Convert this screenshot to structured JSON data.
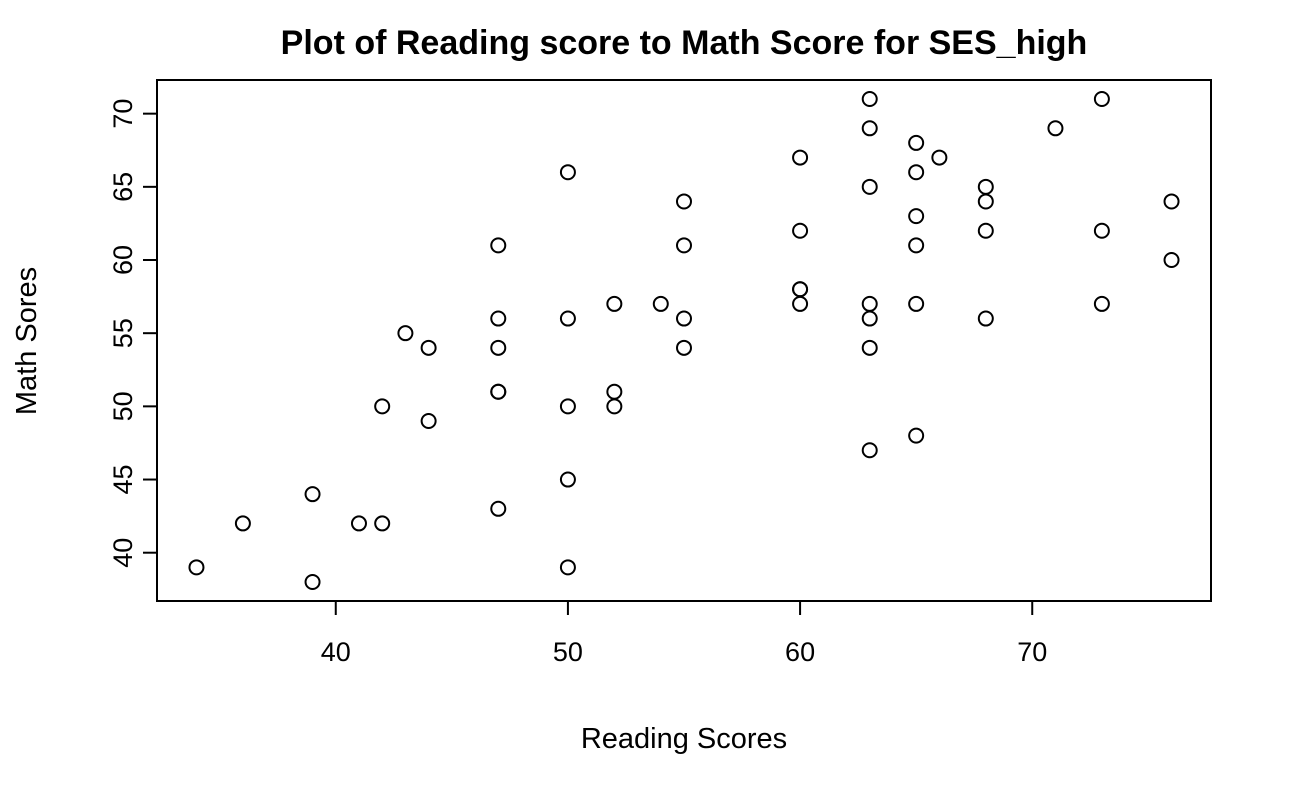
{
  "chart_data": {
    "type": "scatter",
    "title": "Plot of Reading score to Math Score for  SES_high",
    "xlabel": "Reading Scores",
    "ylabel": "Math Sores",
    "xlim": [
      32.3,
      77.7
    ],
    "ylim": [
      36.7,
      72.3
    ],
    "x_ticks": [
      40,
      50,
      60,
      70
    ],
    "y_ticks": [
      40,
      45,
      50,
      55,
      60,
      65,
      70
    ],
    "grid": false,
    "legend": "none",
    "marker": "open-circle",
    "point_color": "#000000",
    "points": [
      {
        "x": 34,
        "y": 39
      },
      {
        "x": 36,
        "y": 42
      },
      {
        "x": 39,
        "y": 44
      },
      {
        "x": 39,
        "y": 38
      },
      {
        "x": 41,
        "y": 42
      },
      {
        "x": 42,
        "y": 42
      },
      {
        "x": 42,
        "y": 50
      },
      {
        "x": 43,
        "y": 55
      },
      {
        "x": 44,
        "y": 54
      },
      {
        "x": 44,
        "y": 49
      },
      {
        "x": 47,
        "y": 61
      },
      {
        "x": 47,
        "y": 56
      },
      {
        "x": 47,
        "y": 54
      },
      {
        "x": 47,
        "y": 51
      },
      {
        "x": 47,
        "y": 51
      },
      {
        "x": 47,
        "y": 43
      },
      {
        "x": 50,
        "y": 66
      },
      {
        "x": 50,
        "y": 56
      },
      {
        "x": 50,
        "y": 50
      },
      {
        "x": 50,
        "y": 45
      },
      {
        "x": 50,
        "y": 39
      },
      {
        "x": 52,
        "y": 57
      },
      {
        "x": 52,
        "y": 51
      },
      {
        "x": 52,
        "y": 50
      },
      {
        "x": 54,
        "y": 57
      },
      {
        "x": 55,
        "y": 64
      },
      {
        "x": 55,
        "y": 61
      },
      {
        "x": 55,
        "y": 56
      },
      {
        "x": 55,
        "y": 54
      },
      {
        "x": 60,
        "y": 67
      },
      {
        "x": 60,
        "y": 62
      },
      {
        "x": 60,
        "y": 58
      },
      {
        "x": 60,
        "y": 58
      },
      {
        "x": 60,
        "y": 57
      },
      {
        "x": 63,
        "y": 71
      },
      {
        "x": 63,
        "y": 69
      },
      {
        "x": 63,
        "y": 65
      },
      {
        "x": 63,
        "y": 57
      },
      {
        "x": 63,
        "y": 56
      },
      {
        "x": 63,
        "y": 54
      },
      {
        "x": 63,
        "y": 47
      },
      {
        "x": 65,
        "y": 68
      },
      {
        "x": 65,
        "y": 66
      },
      {
        "x": 65,
        "y": 63
      },
      {
        "x": 65,
        "y": 61
      },
      {
        "x": 65,
        "y": 57
      },
      {
        "x": 65,
        "y": 48
      },
      {
        "x": 66,
        "y": 67
      },
      {
        "x": 68,
        "y": 65
      },
      {
        "x": 68,
        "y": 64
      },
      {
        "x": 68,
        "y": 62
      },
      {
        "x": 68,
        "y": 56
      },
      {
        "x": 71,
        "y": 69
      },
      {
        "x": 73,
        "y": 71
      },
      {
        "x": 73,
        "y": 62
      },
      {
        "x": 73,
        "y": 57
      },
      {
        "x": 76,
        "y": 64
      },
      {
        "x": 76,
        "y": 60
      }
    ]
  }
}
